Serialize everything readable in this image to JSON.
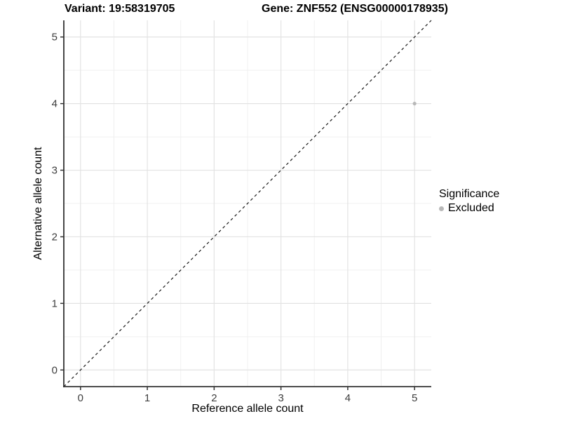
{
  "titles": {
    "variant": "Variant: 19:58319705",
    "gene": "Gene: ZNF552 (ENSG00000178935)"
  },
  "axes": {
    "x_label": "Reference allele count",
    "y_label": "Alternative allele count"
  },
  "legend": {
    "title": "Significance",
    "items": [
      {
        "label": "Excluded",
        "marker": "circle",
        "color": "#b8b8b8"
      }
    ]
  },
  "colors": {
    "background": "#ffffff",
    "grid_major": "#e3e3e3",
    "grid_minor": "#f0f0f0",
    "axis_line": "#333333",
    "tick_mark": "#333333",
    "tick_label": "#3d3d3d",
    "point": "#b8b8b8",
    "dashed_line": "#1a1a1a"
  },
  "chart_data": {
    "type": "scatter",
    "title": "Variant: 19:58319705   Gene: ZNF552 (ENSG00000178935)",
    "xlabel": "Reference allele count",
    "ylabel": "Alternative allele count",
    "xlim": [
      -0.25,
      5.25
    ],
    "ylim": [
      -0.25,
      5.25
    ],
    "x_ticks": [
      0,
      1,
      2,
      3,
      4,
      5
    ],
    "y_ticks": [
      0,
      1,
      2,
      3,
      4,
      5
    ],
    "x_minor_ticks": [
      0.5,
      1.5,
      2.5,
      3.5,
      4.5
    ],
    "y_minor_ticks": [
      0.5,
      1.5,
      2.5,
      3.5,
      4.5
    ],
    "grid": true,
    "legend_position": "right",
    "series": [
      {
        "name": "Excluded",
        "color": "#b8b8b8",
        "points": [
          {
            "x": 5,
            "y": 4
          }
        ]
      }
    ],
    "reference_line": {
      "type": "identity",
      "slope": 1,
      "intercept": 0,
      "style": "dashed",
      "color": "#1a1a1a"
    }
  }
}
